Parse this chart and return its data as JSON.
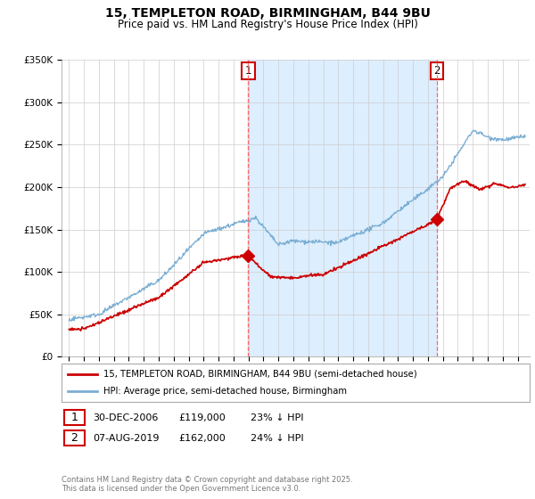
{
  "title": "15, TEMPLETON ROAD, BIRMINGHAM, B44 9BU",
  "subtitle": "Price paid vs. HM Land Registry's House Price Index (HPI)",
  "legend_line1": "15, TEMPLETON ROAD, BIRMINGHAM, B44 9BU (semi-detached house)",
  "legend_line2": "HPI: Average price, semi-detached house, Birmingham",
  "point1_date": "30-DEC-2006",
  "point1_price": "£119,000",
  "point1_hpi": "23% ↓ HPI",
  "point1_x": 2006.99,
  "point1_y": 119000,
  "point2_date": "07-AUG-2019",
  "point2_price": "£162,000",
  "point2_hpi": "24% ↓ HPI",
  "point2_x": 2019.6,
  "point2_y": 162000,
  "ylim": [
    0,
    350000
  ],
  "yticks": [
    0,
    50000,
    100000,
    150000,
    200000,
    250000,
    300000,
    350000
  ],
  "ytick_labels": [
    "£0",
    "£50K",
    "£100K",
    "£150K",
    "£200K",
    "£250K",
    "£300K",
    "£350K"
  ],
  "line_color_property": "#cc0000",
  "line_color_hpi": "#7bafd4",
  "shade_color": "#ddeeff",
  "vline_color": "#ff6666",
  "grid_color": "#cccccc",
  "bg_color": "#ffffff",
  "copyright_text": "Contains HM Land Registry data © Crown copyright and database right 2025.\nThis data is licensed under the Open Government Licence v3.0.",
  "xlim_start": 1994.5,
  "xlim_end": 2025.8
}
